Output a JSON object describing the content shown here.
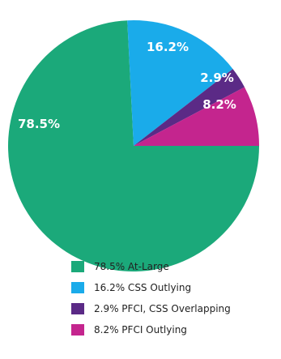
{
  "chart_data": {
    "type": "pie",
    "title": "",
    "slices": [
      {
        "label": "78.5% At-Large",
        "value": 78.5,
        "display": "78.5%",
        "color": "#1ba97a"
      },
      {
        "label": "16.2% CSS Outlying",
        "value": 16.2,
        "display": "16.2%",
        "color": "#1aabea"
      },
      {
        "label": "2.9% PFCI, CSS Overlapping",
        "value": 2.9,
        "display": "2.9%",
        "color": "#5b2a86"
      },
      {
        "label": "8.2% PFCI Outlying",
        "value": 8.2,
        "display": "8.2%",
        "color": "#c4258e"
      }
    ],
    "legend": {
      "position": "bottom",
      "entries": [
        "78.5% At-Large",
        "16.2% CSS Outlying",
        "2.9% PFCI, CSS Overlapping",
        "8.2% PFCI Outlying"
      ]
    }
  }
}
